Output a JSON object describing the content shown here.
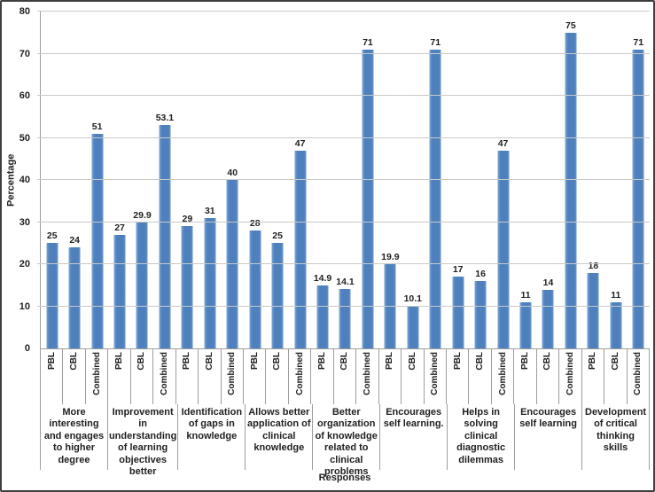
{
  "chart_data": {
    "type": "bar",
    "xlabel": "Responses",
    "ylabel": "Percentage",
    "ylim": [
      0,
      80
    ],
    "yticks": [
      0,
      10,
      20,
      30,
      40,
      50,
      60,
      70,
      80
    ],
    "grid": "horizontal",
    "legend": "none",
    "bar_color": "#4f81bd",
    "series_labels": [
      "PBL",
      "CBL",
      "Combined"
    ],
    "categories": [
      "More interesting and engages to higher degree",
      "Improvement in understanding of learning objectives better",
      "Identification of gaps in knowledge",
      "Allows better application of clinical knowledge",
      "Better organization of knowledge related to clinical problems",
      "Encourages self learning.",
      "Helps in solving clinical diagnostic dilemmas",
      "Encourages self learning",
      "Development of critical thinking skills"
    ],
    "series": [
      {
        "name": "PBL",
        "values": [
          25,
          27,
          29,
          28,
          14.9,
          19.9,
          17,
          11,
          18
        ]
      },
      {
        "name": "CBL",
        "values": [
          24,
          29.9,
          31,
          25,
          14.1,
          10.1,
          16,
          14,
          11
        ]
      },
      {
        "name": "Combined",
        "values": [
          51,
          53.1,
          40,
          47,
          71,
          71,
          47,
          75,
          71
        ]
      }
    ]
  }
}
